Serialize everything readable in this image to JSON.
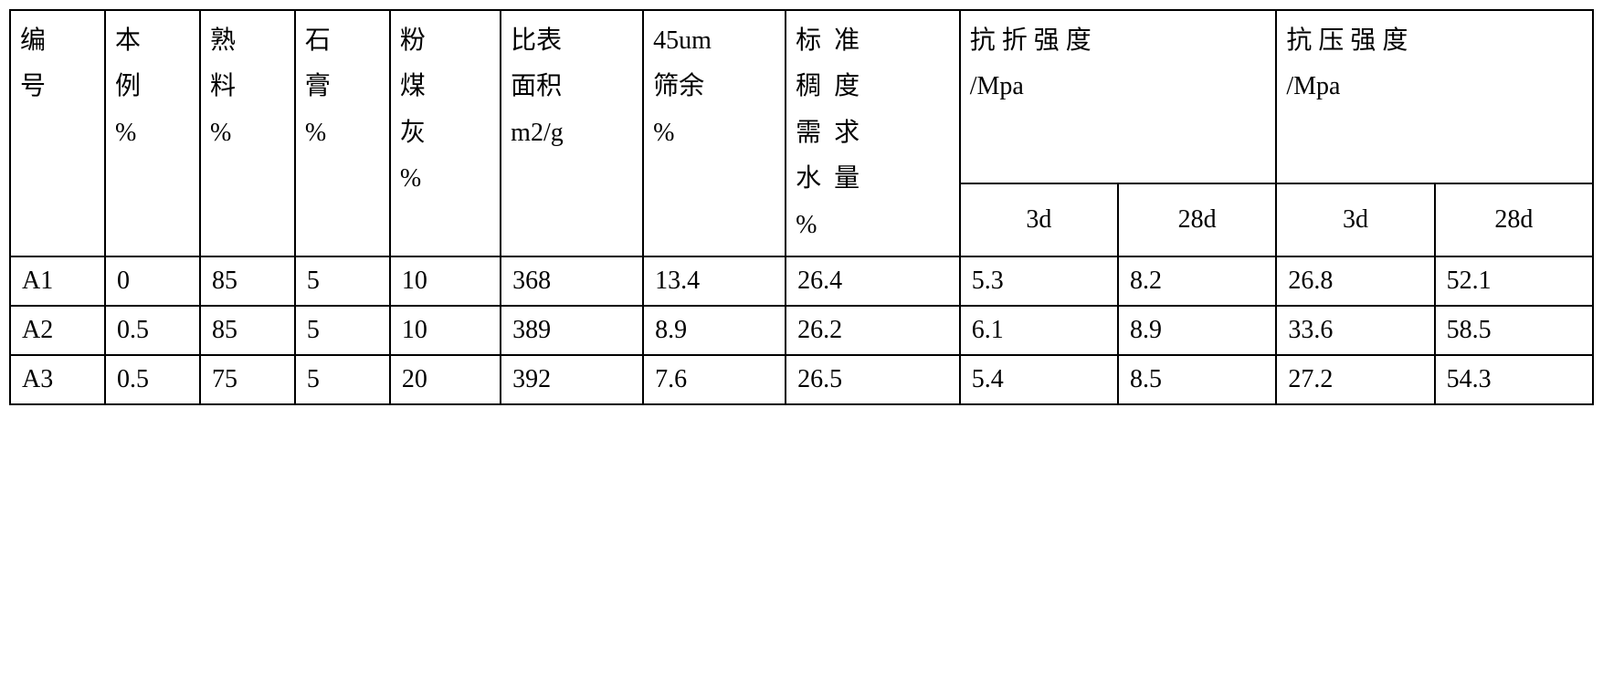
{
  "table": {
    "headers": {
      "col0": "编号",
      "col1": "本例%",
      "col2": "熟料%",
      "col3": "石膏%",
      "col4": "粉煤灰%",
      "col5": "比表面积m2/g",
      "col6": "45um筛余%",
      "col7": "标准稠度需求水量%",
      "col8": "抗折强度/Mpa",
      "col9": "抗压强度/Mpa",
      "sub_3d": "3d",
      "sub_28d": "28d"
    },
    "rows": [
      {
        "id": "A1",
        "sample": "0",
        "clinker": "85",
        "gypsum": "5",
        "flyash": "10",
        "surface": "368",
        "sieve": "13.4",
        "water": "26.4",
        "flex_3d": "5.3",
        "flex_28d": "8.2",
        "comp_3d": "26.8",
        "comp_28d": "52.1"
      },
      {
        "id": "A2",
        "sample": "0.5",
        "clinker": "85",
        "gypsum": "5",
        "flyash": "10",
        "surface": "389",
        "sieve": "8.9",
        "water": "26.2",
        "flex_3d": "6.1",
        "flex_28d": "8.9",
        "comp_3d": "33.6",
        "comp_28d": "58.5"
      },
      {
        "id": "A3",
        "sample": "0.5",
        "clinker": "75",
        "gypsum": "5",
        "flyash": "20",
        "surface": "392",
        "sieve": "7.6",
        "water": "26.5",
        "flex_3d": "5.4",
        "flex_28d": "8.5",
        "comp_3d": "27.2",
        "comp_28d": "54.3"
      }
    ],
    "styling": {
      "border_color": "#000000",
      "border_width": 2,
      "background_color": "#ffffff",
      "text_color": "#000000",
      "font_family": "SimSun",
      "header_fontsize": 28,
      "data_fontsize": 28,
      "col_widths_pct": [
        6,
        6,
        6,
        6,
        7,
        9,
        9,
        11,
        10,
        10,
        10,
        10
      ]
    }
  }
}
